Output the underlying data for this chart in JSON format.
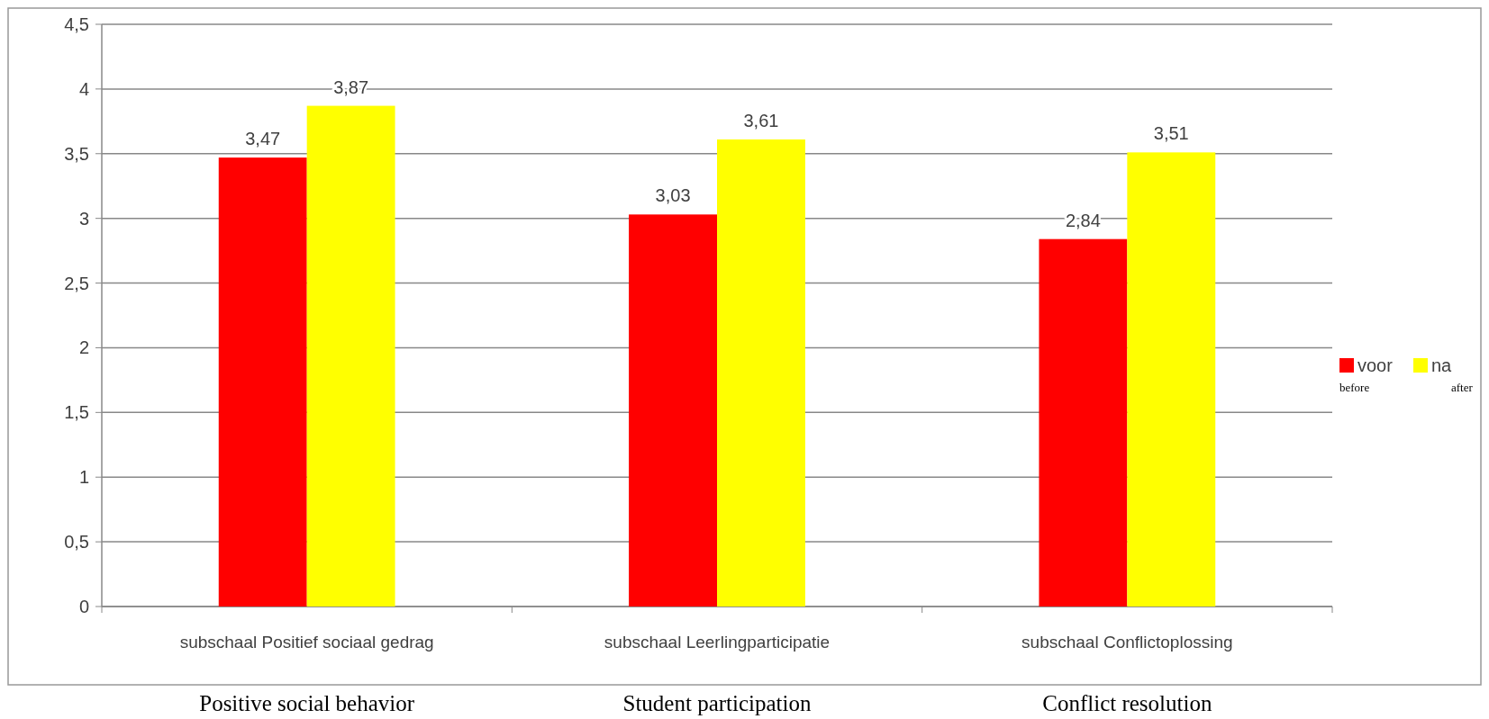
{
  "chart_data": {
    "type": "bar",
    "categories": [
      "subschaal Positief sociaal gedrag",
      "subschaal Leerlingparticipatie",
      "subschaal Conflictoplossing"
    ],
    "series": [
      {
        "name": "voor\nbefore",
        "color": "#ff0000",
        "values": [
          3.47,
          3.03,
          2.84
        ],
        "value_labels": [
          "3,47",
          "3,03",
          "2,84"
        ]
      },
      {
        "name": "na\nafter",
        "color": "#ffff00",
        "values": [
          3.87,
          3.61,
          3.51
        ],
        "value_labels": [
          "3,87",
          "3,61",
          "3,51"
        ]
      }
    ],
    "ylim": [
      0,
      4.5
    ],
    "yticks": [
      {
        "value": 0,
        "label": "0"
      },
      {
        "value": 0.5,
        "label": "0,5"
      },
      {
        "value": 1,
        "label": "1"
      },
      {
        "value": 1.5,
        "label": "1,5"
      },
      {
        "value": 2,
        "label": "2"
      },
      {
        "value": 2.5,
        "label": "2,5"
      },
      {
        "value": 3,
        "label": "3"
      },
      {
        "value": 3.5,
        "label": "3,5"
      },
      {
        "value": 4,
        "label": "4"
      },
      {
        "value": 4.5,
        "label": "4,5"
      }
    ],
    "grid": "y",
    "legend": "right",
    "annotations": [
      "Positive social behavior",
      "Student participation",
      "Conflict resolution"
    ]
  }
}
